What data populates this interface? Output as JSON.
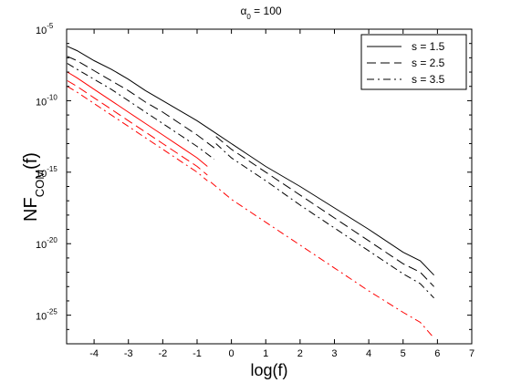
{
  "chart_data": {
    "type": "line",
    "title": "α₀ = 100",
    "title_symbol": "α",
    "title_sub": "0",
    "title_rest": " = 100",
    "xlabel": "log(f)",
    "ylabel_main": "NF",
    "ylabel_sub": "COM",
    "ylabel_rest": "(f)",
    "xlim": [
      -4.8,
      7
    ],
    "ylim_exp": [
      -27,
      -5
    ],
    "y_log_scale": true,
    "grid": false,
    "legend_position": "top-right",
    "x_ticks": [
      "-4",
      "-3",
      "-2",
      "-1",
      "0",
      "1",
      "2",
      "3",
      "4",
      "5",
      "6",
      "7"
    ],
    "y_ticks": [
      {
        "base": "10",
        "exp": "-5"
      },
      {
        "base": "10",
        "exp": "-10"
      },
      {
        "base": "10",
        "exp": "-15"
      },
      {
        "base": "10",
        "exp": "-20"
      },
      {
        "base": "10",
        "exp": "-25"
      }
    ],
    "series": [
      {
        "name": "s = 1.5",
        "color": "#000000",
        "dash": "solid",
        "segments": [
          {
            "x": [
              -4.78,
              -4.5,
              -4.0,
              -3.5,
              -3.0,
              -2.5,
              -2.0,
              -1.5,
              -1.0,
              -0.5,
              0.0,
              0.5,
              1.0,
              2.0,
              3.0,
              4.0,
              5.0,
              5.5,
              5.9
            ],
            "y": [
              -6.2,
              -6.5,
              -7.2,
              -7.8,
              -8.5,
              -9.3,
              -10.0,
              -10.7,
              -11.4,
              -12.2,
              -13.0,
              -13.8,
              -14.6,
              -16.0,
              -17.5,
              -19.0,
              -20.6,
              -21.2,
              -22.2
            ]
          }
        ]
      },
      {
        "name": "s = 2.5",
        "color": "#000000",
        "dash": "dashed",
        "segments": [
          {
            "x": [
              -4.78,
              -4.5,
              -4.0,
              -3.5,
              -3.0,
              -2.5,
              -2.0,
              -1.5,
              -1.0,
              -0.5
            ],
            "y": [
              -6.9,
              -7.2,
              -7.9,
              -8.6,
              -9.3,
              -10.1,
              -10.8,
              -11.6,
              -12.4,
              -13.3
            ]
          },
          {
            "x": [
              -0.45,
              0.0,
              1.0,
              2.0,
              3.0,
              4.0,
              5.0,
              5.5,
              5.9
            ],
            "y": [
              -12.5,
              -13.4,
              -15.0,
              -16.6,
              -18.2,
              -19.8,
              -21.4,
              -22.0,
              -23.0
            ]
          }
        ]
      },
      {
        "name": "s = 3.5",
        "color": "#000000",
        "dash": "dashdot",
        "segments": [
          {
            "x": [
              -4.78,
              -4.5,
              -4.0,
              -3.5,
              -3.0,
              -2.5,
              -2.0,
              -1.5,
              -1.0,
              -0.5
            ],
            "y": [
              -7.4,
              -7.8,
              -8.5,
              -9.2,
              -10.0,
              -10.8,
              -11.6,
              -12.4,
              -13.2,
              -14.1
            ]
          },
          {
            "x": [
              -0.45,
              0.0,
              1.0,
              2.0,
              3.0,
              4.0,
              5.0,
              5.5,
              5.9
            ],
            "y": [
              -13.0,
              -14.0,
              -15.6,
              -17.3,
              -18.9,
              -20.5,
              -22.1,
              -22.8,
              -23.8
            ]
          }
        ]
      },
      {
        "name": "",
        "color": "#ff0000",
        "dash": "solid",
        "segments": [
          {
            "x": [
              -4.78,
              -4.5,
              -4.0,
              -3.5,
              -3.0,
              -2.5,
              -2.0,
              -1.5,
              -1.0,
              -0.7
            ],
            "y": [
              -8.0,
              -8.4,
              -9.2,
              -10.0,
              -10.8,
              -11.6,
              -12.4,
              -13.2,
              -14.0,
              -14.6
            ]
          }
        ]
      },
      {
        "name": "",
        "color": "#ff0000",
        "dash": "dashed",
        "segments": [
          {
            "x": [
              -4.78,
              -4.5,
              -4.0,
              -3.5,
              -3.0,
              -2.5,
              -2.0,
              -1.5,
              -1.0,
              -0.7
            ],
            "y": [
              -8.6,
              -9.0,
              -9.8,
              -10.6,
              -11.4,
              -12.2,
              -13.0,
              -13.8,
              -14.6,
              -15.2
            ]
          }
        ]
      },
      {
        "name": "",
        "color": "#ff0000",
        "dash": "dashdot",
        "segments": [
          {
            "x": [
              -4.78,
              -4.5,
              -4.0,
              -3.5,
              -3.0,
              -2.5,
              -2.0,
              -1.5,
              -1.0,
              -0.7
            ],
            "y": [
              -9.0,
              -9.4,
              -10.2,
              -11.0,
              -11.8,
              -12.6,
              -13.4,
              -14.2,
              -15.0,
              -15.6
            ]
          },
          {
            "x": [
              -0.6,
              0.0,
              1.0,
              2.0,
              3.0,
              4.0,
              5.0,
              5.5,
              5.9
            ],
            "y": [
              -15.7,
              -16.9,
              -18.5,
              -20.1,
              -21.7,
              -23.3,
              -24.8,
              -25.5,
              -26.6
            ]
          }
        ]
      }
    ]
  }
}
